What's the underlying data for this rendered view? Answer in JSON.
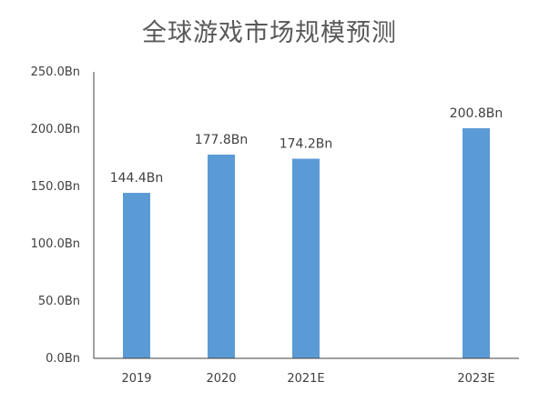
{
  "chart_data": {
    "type": "bar",
    "title": "全球游戏市场规模预测",
    "categories": [
      "2019",
      "2020",
      "2021E",
      "2023E"
    ],
    "values": [
      144.4,
      177.8,
      174.2,
      200.8
    ],
    "data_labels": [
      "144.4Bn",
      "177.8Bn",
      "174.2Bn",
      "200.8Bn"
    ],
    "y_ticks": [
      0,
      50,
      100,
      150,
      200,
      250
    ],
    "y_tick_labels": [
      "0.0Bn",
      "50.0Bn",
      "100.0Bn",
      "150.0Bn",
      "200.0Bn",
      "250.0Bn"
    ],
    "ylim": [
      0,
      250
    ],
    "grid": false,
    "legend": "none",
    "bar_color": "#5b9bd5",
    "axis_color": "#404040"
  }
}
